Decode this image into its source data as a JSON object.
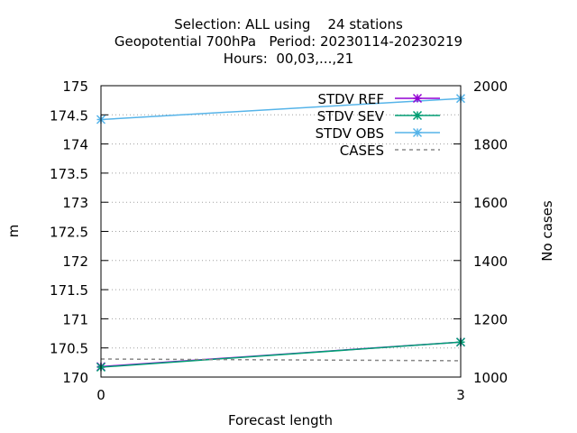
{
  "title_lines": [
    "Selection: ALL using    24 stations",
    "Geopotential 700hPa   Period: 20230114-20230219",
    "Hours:  00,03,...,21"
  ],
  "chart_data": {
    "type": "line",
    "xlabel": "Forecast length",
    "ylabel": "m",
    "y2label": "No cases",
    "x": [
      0,
      3
    ],
    "xticks": [
      "0",
      "3"
    ],
    "xlim": [
      0,
      3
    ],
    "ylim": [
      170,
      175
    ],
    "yticks": [
      "170",
      "170.5",
      "171",
      "171.5",
      "172",
      "172.5",
      "173",
      "173.5",
      "174",
      "174.5",
      "175"
    ],
    "y2lim": [
      1000,
      2000
    ],
    "y2ticks": [
      "1000",
      "1200",
      "1400",
      "1600",
      "1800",
      "2000"
    ],
    "grid": true,
    "legend_position": "top-right",
    "series": [
      {
        "name": "STDV REF",
        "axis": "y",
        "color": "#9400d3",
        "marker": "star",
        "values": [
          170.18,
          170.6
        ]
      },
      {
        "name": "STDV SEV",
        "axis": "y",
        "color": "#009e73",
        "marker": "star",
        "values": [
          170.17,
          170.6
        ]
      },
      {
        "name": "STDV OBS",
        "axis": "y",
        "color": "#56b4e9",
        "marker": "star",
        "values": [
          174.42,
          174.78
        ]
      },
      {
        "name": "CASES",
        "axis": "y2",
        "color": "#888888",
        "dashed": true,
        "values": [
          1062,
          1056
        ]
      }
    ]
  }
}
